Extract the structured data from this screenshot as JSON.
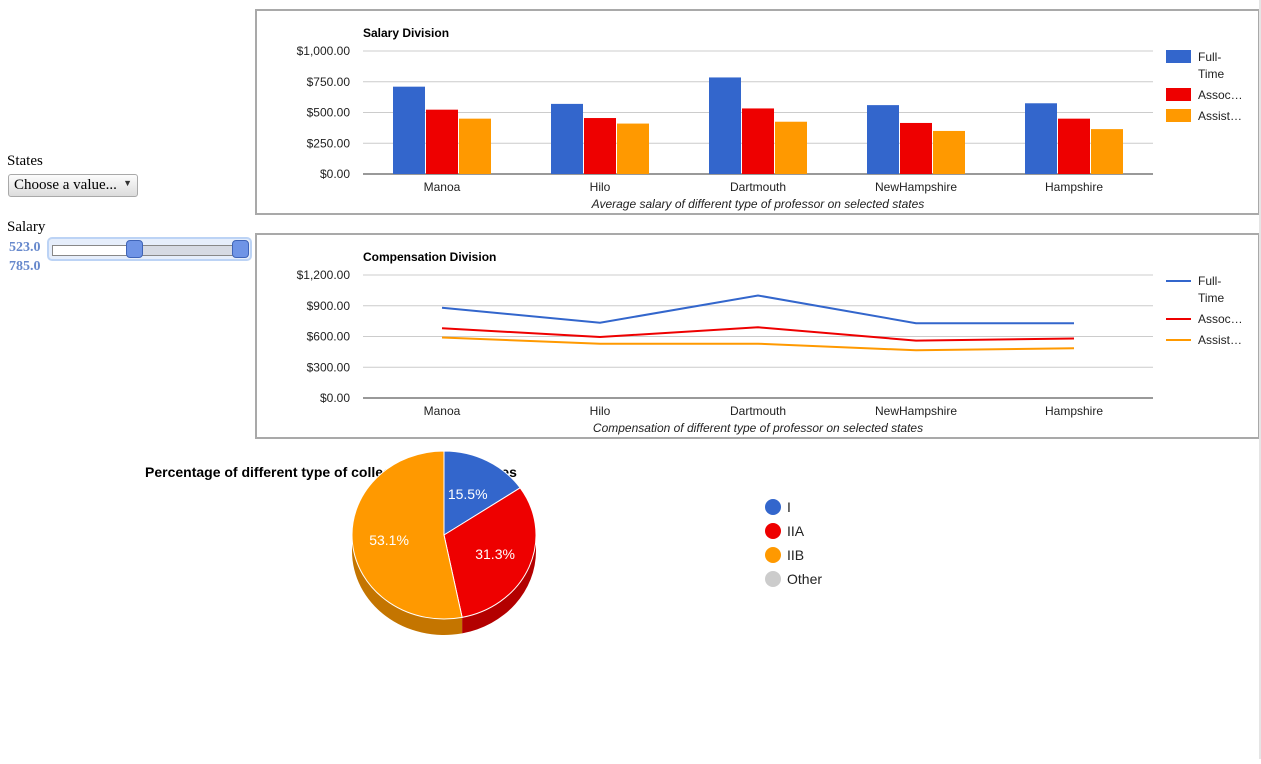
{
  "controls": {
    "states_label": "States",
    "states_select": {
      "selected": "Choose a value..."
    },
    "salary_label": "Salary",
    "salary_min": "523.0",
    "salary_max": "785.0"
  },
  "colors": {
    "blue": "#3366cc",
    "red": "#ee0000",
    "orange": "#ff9900",
    "grey": "#cccccc",
    "red_side": "#b30000",
    "orange_side": "#c47500"
  },
  "chart_data": [
    {
      "type": "bar",
      "title": "Salary Division",
      "xlabel": "Average salary of different type of professor on selected states",
      "categories": [
        "Manoa",
        "Hilo",
        "Dartmouth",
        "NewHampshire",
        "Hampshire"
      ],
      "series": [
        {
          "name": "Full-Time",
          "legend": [
            "Full-",
            "Time"
          ],
          "values": [
            710,
            570,
            785,
            560,
            575
          ]
        },
        {
          "name": "Associate",
          "legend": [
            "Assoc…"
          ],
          "values": [
            523,
            455,
            533,
            415,
            450
          ]
        },
        {
          "name": "Assistant",
          "legend": [
            "Assist…"
          ],
          "values": [
            450,
            410,
            425,
            350,
            365
          ]
        }
      ],
      "yticks": [
        "$1,000.00",
        "$750.00",
        "$500.00",
        "$250.00",
        "$0.00"
      ],
      "ylim": [
        0,
        1000
      ],
      "grid": true,
      "legend_position": "right"
    },
    {
      "type": "line",
      "title": "Compensation Division",
      "xlabel": "Compensation of different type of professor on selected states",
      "categories": [
        "Manoa",
        "Hilo",
        "Dartmouth",
        "NewHampshire",
        "Hampshire"
      ],
      "series": [
        {
          "name": "Full-Time",
          "legend": [
            "Full-",
            "Time"
          ],
          "values": [
            880,
            735,
            1000,
            730,
            730
          ]
        },
        {
          "name": "Associate",
          "legend": [
            "Assoc…"
          ],
          "values": [
            680,
            595,
            690,
            560,
            580
          ]
        },
        {
          "name": "Assistant",
          "legend": [
            "Assist…"
          ],
          "values": [
            590,
            530,
            530,
            465,
            485
          ]
        }
      ],
      "yticks": [
        "$1,200.00",
        "$900.00",
        "$600.00",
        "$300.00",
        "$0.00"
      ],
      "ylim": [
        0,
        1200
      ],
      "grid": true,
      "legend_position": "right"
    },
    {
      "type": "pie",
      "title": "Percentage of different type of colleges in United States",
      "slices": [
        {
          "label": "I",
          "value": 15.5,
          "text": "15.5%"
        },
        {
          "label": "IIA",
          "value": 31.3,
          "text": "31.3%"
        },
        {
          "label": "IIB",
          "value": 53.1,
          "text": "53.1%"
        }
      ],
      "legend": [
        "I",
        "IIA",
        "IIB",
        "Other"
      ],
      "legend_position": "right",
      "style": "3d"
    }
  ]
}
